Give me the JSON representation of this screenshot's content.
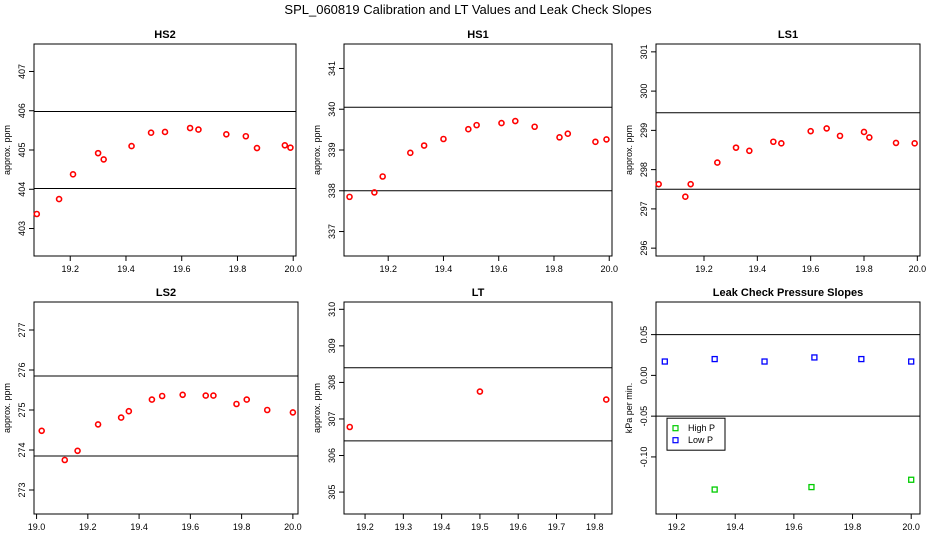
{
  "title": "SPL_060819  Calibration and LT Values and Leak Check Slopes",
  "chart_data": [
    {
      "type": "scatter",
      "title": "HS2",
      "ylabel": "approx. ppm",
      "xlim": [
        19.07,
        20.01
      ],
      "ylim": [
        402.3,
        407.7
      ],
      "xticks": [
        19.2,
        19.4,
        19.6,
        19.8,
        20.0
      ],
      "xtick_labels": [
        "19.2",
        "19.4",
        "19.6",
        "19.8",
        "20.0"
      ],
      "yticks": [
        403,
        404,
        405,
        406,
        407
      ],
      "ytick_labels": [
        "403",
        "404",
        "405",
        "406",
        "407"
      ],
      "hlines": [
        404.02,
        405.98
      ],
      "series": [
        {
          "color": "#ff0000",
          "marker": "circle",
          "x": [
            19.08,
            19.16,
            19.21,
            19.3,
            19.32,
            19.42,
            19.49,
            19.54,
            19.63,
            19.66,
            19.76,
            19.83,
            19.87,
            19.97,
            19.99
          ],
          "y": [
            403.37,
            403.75,
            404.38,
            404.92,
            404.76,
            405.1,
            405.44,
            405.46,
            405.56,
            405.52,
            405.4,
            405.35,
            405.05,
            405.12,
            405.06
          ]
        }
      ]
    },
    {
      "type": "scatter",
      "title": "HS1",
      "ylabel": "approx. ppm",
      "xlim": [
        19.04,
        20.01
      ],
      "ylim": [
        336.4,
        341.6
      ],
      "xticks": [
        19.2,
        19.4,
        19.6,
        19.8,
        20.0
      ],
      "xtick_labels": [
        "19.2",
        "19.4",
        "19.6",
        "19.8",
        "20.0"
      ],
      "yticks": [
        337,
        338,
        339,
        340,
        341
      ],
      "ytick_labels": [
        "337",
        "338",
        "339",
        "340",
        "341"
      ],
      "hlines": [
        338.0,
        340.05
      ],
      "series": [
        {
          "color": "#ff0000",
          "marker": "circle",
          "x": [
            19.06,
            19.15,
            19.18,
            19.28,
            19.33,
            19.4,
            19.49,
            19.52,
            19.61,
            19.66,
            19.73,
            19.82,
            19.85,
            19.95,
            19.99
          ],
          "y": [
            337.85,
            337.96,
            338.35,
            338.93,
            339.11,
            339.27,
            339.51,
            339.61,
            339.66,
            339.71,
            339.57,
            339.31,
            339.4,
            339.2,
            339.26
          ]
        }
      ]
    },
    {
      "type": "scatter",
      "title": "LS1",
      "ylabel": "approx. ppm",
      "xlim": [
        19.02,
        20.01
      ],
      "ylim": [
        295.8,
        301.2
      ],
      "xticks": [
        19.2,
        19.4,
        19.6,
        19.8,
        20.0
      ],
      "xtick_labels": [
        "19.2",
        "19.4",
        "19.6",
        "19.8",
        "20.0"
      ],
      "yticks": [
        296,
        297,
        298,
        299,
        300,
        301
      ],
      "ytick_labels": [
        "296",
        "297",
        "298",
        "299",
        "300",
        "301"
      ],
      "hlines": [
        297.5,
        299.45
      ],
      "series": [
        {
          "color": "#ff0000",
          "marker": "circle",
          "x": [
            19.03,
            19.13,
            19.15,
            19.25,
            19.32,
            19.37,
            19.46,
            19.49,
            19.6,
            19.66,
            19.71,
            19.8,
            19.82,
            19.92,
            19.99
          ],
          "y": [
            297.63,
            297.31,
            297.63,
            298.18,
            298.56,
            298.48,
            298.71,
            298.67,
            298.98,
            299.05,
            298.86,
            298.96,
            298.82,
            298.68,
            298.67
          ]
        }
      ]
    },
    {
      "type": "scatter",
      "title": "LS2",
      "ylabel": "approx. ppm",
      "xlim": [
        18.99,
        20.02
      ],
      "ylim": [
        272.4,
        277.7
      ],
      "xticks": [
        19.0,
        19.2,
        19.4,
        19.6,
        19.8,
        20.0
      ],
      "xtick_labels": [
        "19.0",
        "19.2",
        "19.4",
        "19.6",
        "19.8",
        "20.0"
      ],
      "yticks": [
        273,
        274,
        275,
        276,
        277
      ],
      "ytick_labels": [
        "273",
        "274",
        "275",
        "276",
        "277"
      ],
      "hlines": [
        273.85,
        275.85
      ],
      "series": [
        {
          "color": "#ff0000",
          "marker": "circle",
          "x": [
            19.02,
            19.11,
            19.16,
            19.24,
            19.33,
            19.36,
            19.45,
            19.49,
            19.57,
            19.66,
            19.69,
            19.78,
            19.82,
            19.9,
            20.0
          ],
          "y": [
            274.48,
            273.75,
            273.98,
            274.64,
            274.81,
            274.97,
            275.26,
            275.35,
            275.38,
            275.36,
            275.36,
            275.15,
            275.26,
            275.0,
            274.94
          ]
        }
      ]
    },
    {
      "type": "scatter",
      "title": "LT",
      "ylabel": "approx. ppm",
      "xlim": [
        19.145,
        19.845
      ],
      "ylim": [
        304.4,
        310.2
      ],
      "xticks": [
        19.2,
        19.3,
        19.4,
        19.5,
        19.6,
        19.7,
        19.8
      ],
      "xtick_labels": [
        "19.2",
        "19.3",
        "19.4",
        "19.5",
        "19.6",
        "19.7",
        "19.8"
      ],
      "yticks": [
        305,
        306,
        307,
        308,
        309,
        310
      ],
      "ytick_labels": [
        "305",
        "306",
        "307",
        "308",
        "309",
        "310"
      ],
      "hlines": [
        306.4,
        308.4
      ],
      "series": [
        {
          "color": "#ff0000",
          "marker": "circle",
          "x": [
            19.16,
            19.5,
            19.83
          ],
          "y": [
            306.78,
            307.75,
            307.53
          ]
        }
      ]
    },
    {
      "type": "scatter",
      "title": "Leak Check Pressure Slopes",
      "ylabel": "kPa per min.",
      "xlim": [
        19.13,
        20.03
      ],
      "ylim": [
        -0.17,
        0.09
      ],
      "xticks": [
        19.2,
        19.4,
        19.6,
        19.8,
        20.0
      ],
      "xtick_labels": [
        "19.2",
        "19.4",
        "19.6",
        "19.8",
        "20.0"
      ],
      "yticks": [
        -0.1,
        -0.05,
        0.0,
        0.05
      ],
      "ytick_labels": [
        "-0.10",
        "-0.05",
        "0.00",
        "0.05"
      ],
      "hlines": [
        0.05,
        -0.05
      ],
      "legend": {
        "placement": "lower-left",
        "entries": [
          "High P",
          "Low P"
        ]
      },
      "series": [
        {
          "name": "High P",
          "color": "#00cc00",
          "marker": "square",
          "x": [
            19.33,
            19.66,
            20.0
          ],
          "y": [
            -0.14,
            -0.137,
            -0.128
          ]
        },
        {
          "name": "Low P",
          "color": "#0000ff",
          "marker": "square",
          "x": [
            19.16,
            19.33,
            19.5,
            19.67,
            19.83,
            20.0
          ],
          "y": [
            0.017,
            0.02,
            0.017,
            0.022,
            0.02,
            0.017
          ]
        }
      ]
    }
  ]
}
